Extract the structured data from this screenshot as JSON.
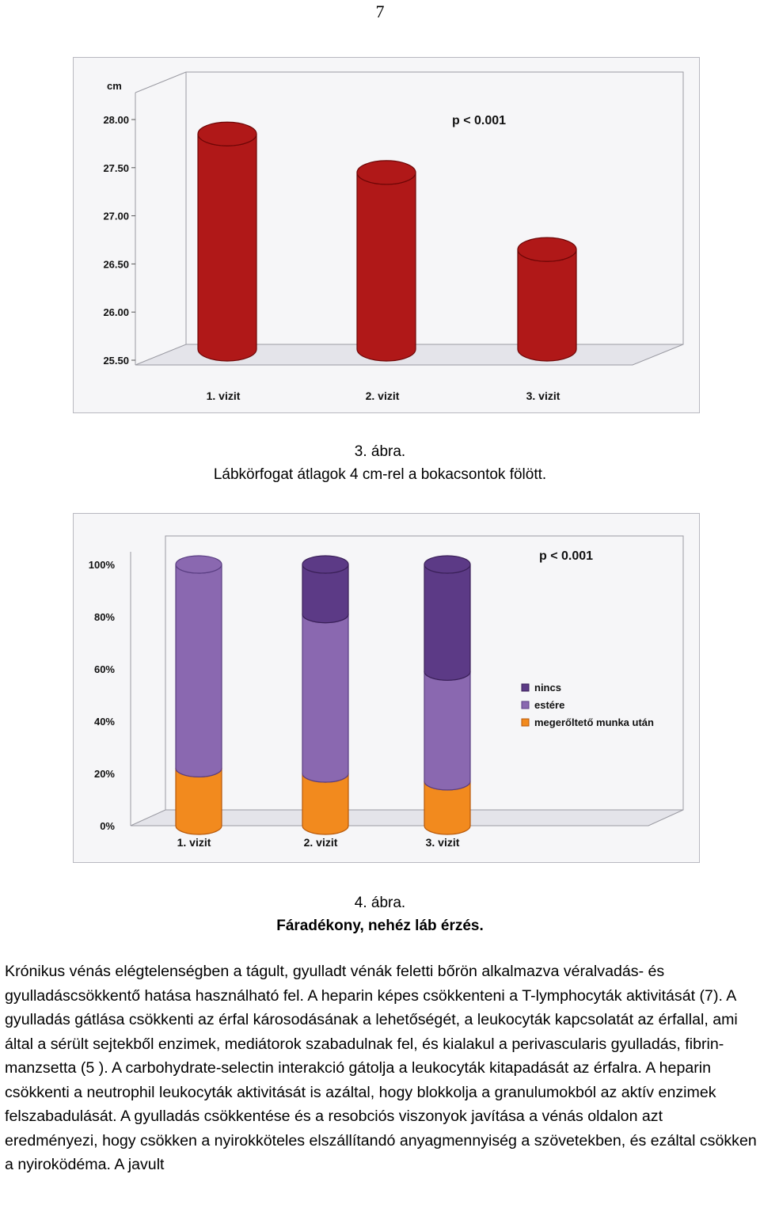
{
  "page_number": "7",
  "captions": {
    "fig3_number": "3. ábra.",
    "fig3_title": "Lábkörfogat átlagok 4 cm-rel a bokacsontok fölött.",
    "fig4_number": "4. ábra.",
    "fig4_title": "Fáradékony, nehéz láb érzés."
  },
  "body_text": "Krónikus vénás elégtelenségben a tágult, gyulladt vénák feletti bőrön alkalmazva véralvadás- és gyulladáscsökkentő hatása használható fel. A heparin képes csökkenteni a T-lymphocyták aktivitását (7). A gyulladás gátlása csökkenti az érfal károsodásának a lehetőségét, a leukocyták kapcsolatát az érfallal, ami által a sérült sejtekből enzimek, mediátorok szabadulnak fel, és kialakul a perivascularis gyulladás, fibrin-manzsetta (5 ). A carbohydrate-selectin interakció gátolja a leukocyták kitapadását az érfalra. A heparin csökkenti a neutrophil leukocyták aktivitását is azáltal, hogy blokkolja a granulumokból az aktív enzimek felszabadulását. A gyulladás csökkentése és a resobciós viszonyok javítása a vénás oldalon azt eredményezi, hogy csökken a nyirokköteles elszállítandó anyagmennyiség a szövetekben, és ezáltal csökken a nyiroködéma. A javult",
  "chart_data": [
    {
      "type": "bar",
      "unit_label": "cm",
      "annotation": "p < 0.001",
      "categories": [
        "1. vizit",
        "2. vizit",
        "3. vizit"
      ],
      "values": [
        27.85,
        27.45,
        26.65
      ],
      "ylim": [
        25.5,
        28.0
      ],
      "ytick_labels": [
        "28.00",
        "27.50",
        "27.00",
        "26.50",
        "26.00",
        "25.50"
      ],
      "ytick_values": [
        28.0,
        27.5,
        27.0,
        26.5,
        26.0,
        25.5
      ],
      "colors": {
        "bar": "#b01818",
        "bar_dark": "#6e0606",
        "bar_light": "#e04a40"
      },
      "grid": false,
      "style": "3d-cylinder"
    },
    {
      "type": "bar",
      "stacked": true,
      "annotation": "p < 0.001",
      "categories": [
        "1. vizit",
        "2. vizit",
        "3. vizit"
      ],
      "ytick_labels": [
        "100%",
        "80%",
        "60%",
        "40%",
        "20%",
        "0%"
      ],
      "ytick_values": [
        100,
        80,
        60,
        40,
        20,
        0
      ],
      "ylim": [
        0,
        100
      ],
      "legend_position": "right",
      "series": [
        {
          "name": "megerőltető munka után",
          "values": [
            22,
            20,
            17
          ],
          "color": "#f28a1e",
          "dark": "#b85808"
        },
        {
          "name": "estére",
          "values": [
            78,
            61,
            42
          ],
          "color": "#8a68b0",
          "dark": "#5a3e82"
        },
        {
          "name": "nincs",
          "values": [
            0,
            19,
            41
          ],
          "color": "#5c3a86",
          "dark": "#3a2058"
        }
      ],
      "grid": false,
      "style": "3d-cylinder"
    }
  ]
}
